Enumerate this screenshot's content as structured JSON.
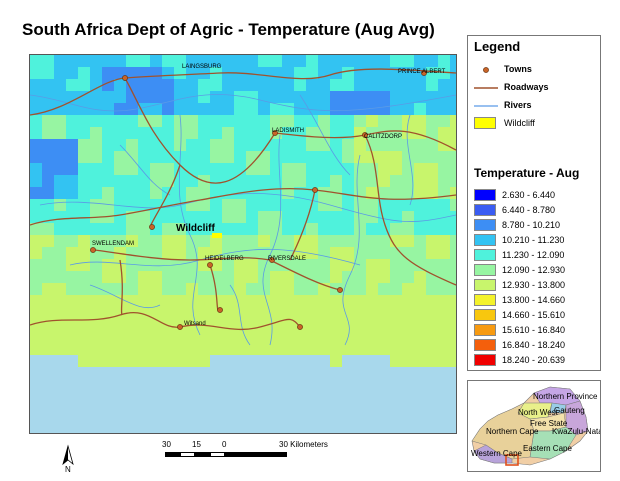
{
  "title": "South Africa Dept of Agric - Temperature (Aug Avg)",
  "legend": {
    "heading": "Legend",
    "towns_label": "Towns",
    "roadways_label": "Roadways",
    "rivers_label": "Rivers",
    "wildcliff_label": "Wildcliff",
    "temperature_heading": "Temperature - Aug",
    "classes": [
      {
        "range": "2.630 - 6.440",
        "color": "#0000ff"
      },
      {
        "range": "6.440 - 8.780",
        "color": "#3a5cf2"
      },
      {
        "range": "8.780 - 10.210",
        "color": "#3d8ef4"
      },
      {
        "range": "10.210 - 11.230",
        "color": "#33c3f2"
      },
      {
        "range": "11.230 - 12.090",
        "color": "#4ff2dc"
      },
      {
        "range": "12.090 - 12.930",
        "color": "#97f5a2"
      },
      {
        "range": "12.930 - 13.800",
        "color": "#c8f56c"
      },
      {
        "range": "13.800 - 14.660",
        "color": "#f4f22a"
      },
      {
        "range": "14.660 - 15.610",
        "color": "#f8c70e"
      },
      {
        "range": "15.610 - 16.840",
        "color": "#f79a10"
      },
      {
        "range": "16.840 - 18.240",
        "color": "#f45f0c"
      },
      {
        "range": "18.240 - 20.639",
        "color": "#f00000"
      }
    ],
    "colors": {
      "town": "#c86428",
      "road": "#a0522d",
      "river": "#5a9be6",
      "wildcliff": "#ffff00"
    }
  },
  "map": {
    "towns": [
      "LAINGSBURG",
      "PRINCE ALBERT",
      "LADISMITH",
      "CALITZDORP",
      "SWELLENDAM",
      "HEIDELBERG",
      "RIVERSDALE",
      "Witsand"
    ],
    "wildcliff_label": "Wildcliff",
    "colors": {
      "ocean": "#a8d8ec"
    }
  },
  "scalebar": {
    "ticks": [
      "30",
      "15",
      "0",
      "30 Kilometers"
    ]
  },
  "north_arrow": {
    "label": "N"
  },
  "inset": {
    "provinces": [
      "Northern Province",
      "North West",
      "Gauteng",
      "Free State",
      "Northern Cape",
      "KwaZulu-Natal",
      "Eastern Cape",
      "Western Cape"
    ]
  }
}
